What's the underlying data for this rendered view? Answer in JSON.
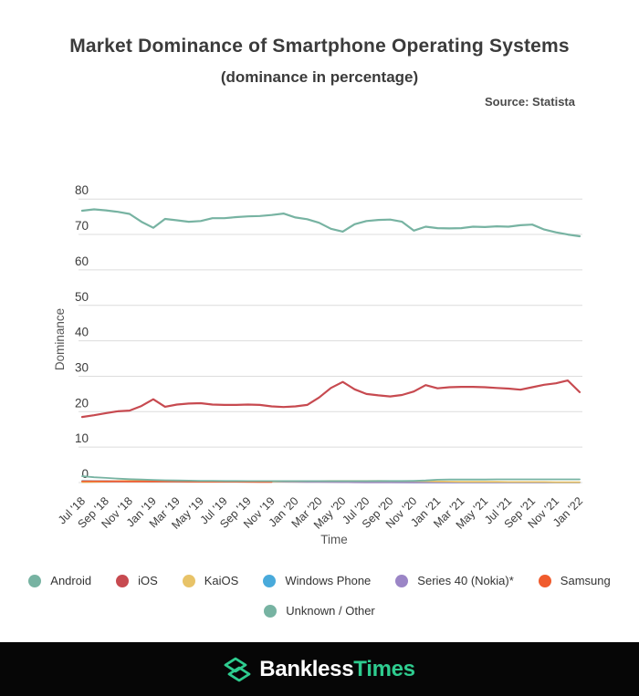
{
  "header": {
    "title": "Market Dominance of Smartphone Operating Systems",
    "subtitle": "(dominance in percentage)",
    "source": "Source: Statista"
  },
  "chart_data": {
    "type": "line",
    "title": "Market Dominance of Smartphone Operating Systems (dominance in percentage)",
    "xlabel": "Time",
    "ylabel": "Dominance",
    "ylim": [
      0,
      80
    ],
    "yticks": [
      0,
      10,
      20,
      30,
      40,
      50,
      60,
      70,
      80
    ],
    "grid": true,
    "legend_position": "bottom",
    "xtick_every": 2,
    "x": [
      "Jul '18",
      "Aug '18",
      "Sep '18",
      "Oct '18",
      "Nov '18",
      "Dec '18",
      "Jan '19",
      "Feb '19",
      "Mar '19",
      "Apr '19",
      "May '19",
      "Jun '19",
      "Jul '19",
      "Aug '19",
      "Sep '19",
      "Oct '19",
      "Nov '19",
      "Dec '19",
      "Jan '20",
      "Feb '20",
      "Mar '20",
      "Apr '20",
      "May '20",
      "Jun '20",
      "Jul '20",
      "Aug '20",
      "Sep '20",
      "Oct '20",
      "Nov '20",
      "Dec '20",
      "Jan '21",
      "Feb '21",
      "Mar '21",
      "Apr '21",
      "May '21",
      "Jun '21",
      "Jul '21",
      "Aug '21",
      "Sep '21",
      "Oct '21",
      "Nov '21",
      "Dec '21",
      "Jan '22"
    ],
    "series": [
      {
        "name": "Android",
        "color": "#77b3a2",
        "values": [
          76.7,
          77.1,
          76.8,
          76.4,
          75.8,
          73.6,
          71.9,
          74.4,
          74.0,
          73.6,
          73.8,
          74.6,
          74.6,
          74.9,
          75.1,
          75.2,
          75.5,
          75.9,
          74.8,
          74.3,
          73.3,
          71.6,
          70.8,
          72.9,
          73.8,
          74.1,
          74.2,
          73.6,
          71.1,
          72.2,
          71.8,
          71.7,
          71.8,
          72.2,
          72.1,
          72.3,
          72.2,
          72.6,
          72.8,
          71.4,
          70.6,
          70.0,
          69.5
        ]
      },
      {
        "name": "iOS",
        "color": "#c74a50",
        "values": [
          18.5,
          19.0,
          19.6,
          20.1,
          20.3,
          21.6,
          23.5,
          21.4,
          22.0,
          22.3,
          22.4,
          22.0,
          21.9,
          21.9,
          22.0,
          21.9,
          21.5,
          21.3,
          21.5,
          21.9,
          24.0,
          26.7,
          28.4,
          26.3,
          25.0,
          24.6,
          24.3,
          24.7,
          25.7,
          27.5,
          26.6,
          26.9,
          27.0,
          27.0,
          26.9,
          26.7,
          26.5,
          26.2,
          26.9,
          27.6,
          28.0,
          28.8,
          25.5
        ]
      },
      {
        "name": "KaiOS",
        "color": "#e8c368",
        "values": [
          0.1,
          0.15,
          0.25,
          0.4,
          0.5,
          0.55,
          0.5,
          0.45,
          0.4,
          0.35,
          0.3,
          0.3,
          0.3,
          0.3,
          0.3,
          0.3,
          0.3,
          0.35,
          0.35,
          0.4,
          0.4,
          0.45,
          0.45,
          0.45,
          0.45,
          0.45,
          0.4,
          0.4,
          0.4,
          0.35,
          0.3,
          0.25,
          0.2,
          0.2,
          0.2,
          0.2,
          0.15,
          0.15,
          0.15,
          0.15,
          0.1,
          0.1,
          0.1
        ]
      },
      {
        "name": "Windows Phone",
        "color": "#49aadb",
        "values": [
          0.45,
          0.42,
          0.4,
          0.38,
          0.36,
          0.35,
          0.34,
          0.33,
          0.32,
          0.31,
          0.3,
          0.32,
          0.35,
          0.38,
          0.4,
          0.4,
          0.42,
          0.42,
          0.4,
          0.38,
          0.35,
          0.3,
          0.25,
          0.2,
          0.15,
          0.12,
          0.1,
          0.08,
          0.06,
          0.05,
          0.04,
          0.04,
          0.03,
          0.03,
          0.03,
          0.02,
          0.02,
          0.02,
          0.02,
          0.02,
          0.02,
          0.02,
          0.02
        ]
      },
      {
        "name": "Series 40 (Nokia)*",
        "color": "#9b85c6",
        "values": [
          0.3,
          0.3,
          0.3,
          0.32,
          0.35,
          0.4,
          0.45,
          0.45,
          0.45,
          0.42,
          0.4,
          0.38,
          0.35,
          0.33,
          0.3,
          0.28,
          0.25,
          0.22,
          0.2,
          0.18,
          0.15,
          0.12,
          0.1,
          0.08,
          0.06,
          0.05,
          0.05,
          0.04,
          0.04,
          0.03,
          0.03,
          0.03,
          0.02,
          0.02,
          0.02,
          0.02,
          0.02,
          0.02,
          0.02,
          0.02,
          0.02,
          0.02,
          0.02
        ]
      },
      {
        "name": "Samsung",
        "color": "#f05b2d",
        "values": [
          0.35,
          0.35,
          0.34,
          0.33,
          0.32,
          0.31,
          0.3,
          0.29,
          0.28,
          0.27,
          0.26,
          0.25,
          0.24,
          0.23,
          0.21,
          0.19,
          0.16,
          null,
          null,
          null,
          null,
          null,
          null,
          null,
          null,
          null,
          null,
          null,
          null,
          null,
          null,
          null,
          null,
          null,
          null,
          null,
          null,
          null,
          null,
          null,
          null,
          null,
          null
        ]
      },
      {
        "name": "Unknown / Other",
        "color": "#77b3a2",
        "values": [
          1.8,
          1.5,
          1.3,
          1.1,
          0.95,
          0.85,
          0.75,
          0.65,
          0.6,
          0.55,
          0.5,
          0.5,
          0.45,
          0.45,
          0.4,
          0.4,
          0.4,
          0.4,
          0.4,
          0.4,
          0.4,
          0.4,
          0.4,
          0.4,
          0.4,
          0.45,
          0.45,
          0.45,
          0.5,
          0.6,
          0.8,
          0.85,
          0.85,
          0.85,
          0.85,
          0.9,
          0.9,
          0.9,
          0.9,
          0.9,
          0.9,
          0.9,
          0.9
        ]
      }
    ]
  },
  "colors": {
    "grid": "#dcdcdc",
    "tick_text": "#3b3b3b",
    "axis_title_text": "#555555",
    "footer_bg": "#060606",
    "brand_green": "#2ecc8f"
  },
  "footer": {
    "brand_part1": "Bankless",
    "brand_part2": "Times"
  }
}
